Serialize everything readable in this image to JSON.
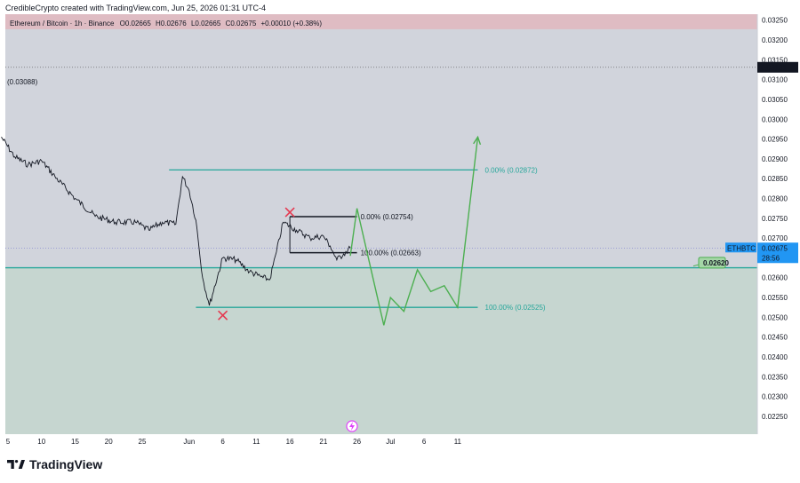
{
  "caption": "CredibleCrypto created with TradingView.com, Jun 25, 2026 01:31 UTC-4",
  "header": {
    "symbol": "Ethereum / Bitcoin · 1h · Binance",
    "o_label": "O",
    "o_value": "0.02665",
    "h_label": "H",
    "h_value": "0.02676",
    "l_label": "L",
    "l_value": "0.02665",
    "c_label": "C",
    "c_value": "0.02675",
    "change": "+0.00010 (+0.38%)"
  },
  "left_price_label": "(0.03088)",
  "brand": {
    "name": "TradingView"
  },
  "colors": {
    "plot_bg": "#d1d4dc",
    "green_zone": "#c6d6d0",
    "red_band": "#dfbcc3",
    "teal": "#26a69a",
    "projection": "#4caf50",
    "cross": "#e53950",
    "blue_label": "#2962ff",
    "price_tag": "#2196f3"
  },
  "chart_data": {
    "type": "line",
    "title": "Ethereum / Bitcoin · 1h · Binance",
    "x_ticks": [
      "5",
      "10",
      "15",
      "20",
      "25",
      "Jun",
      "6",
      "11",
      "16",
      "21",
      "26",
      "Jul",
      "6",
      "11"
    ],
    "y_ticks": [
      "0.03250",
      "0.03200",
      "0.03150",
      "0.03100",
      "0.03050",
      "0.03000",
      "0.02950",
      "0.02900",
      "0.02850",
      "0.02800",
      "0.02750",
      "0.02700",
      "0.02650",
      "0.02600",
      "0.02550",
      "0.02500",
      "0.02450",
      "0.02400",
      "0.02350",
      "0.02300",
      "0.02250"
    ],
    "ylim": [
      0.02205,
      0.03265
    ],
    "price_series": {
      "name": "ETHBTC",
      "points": [
        [
          "May 4",
          0.02955
        ],
        [
          "May 6",
          0.02905
        ],
        [
          "May 8",
          0.02885
        ],
        [
          "May 10",
          0.02895
        ],
        [
          "May 12",
          0.02855
        ],
        [
          "May 15",
          0.028
        ],
        [
          "May 18",
          0.02755
        ],
        [
          "May 21",
          0.0274
        ],
        [
          "May 24",
          0.0274
        ],
        [
          "May 26",
          0.0272
        ],
        [
          "May 28",
          0.0274
        ],
        [
          "May 30",
          0.02735
        ],
        [
          "May 31",
          0.02855
        ],
        [
          "Jun 1",
          0.0282
        ],
        [
          "Jun 2",
          0.02745
        ],
        [
          "Jun 3",
          0.026
        ],
        [
          "Jun 4",
          0.0253
        ],
        [
          "Jun 6",
          0.0265
        ],
        [
          "Jun 8",
          0.02645
        ],
        [
          "Jun 10",
          0.02615
        ],
        [
          "Jun 12",
          0.026
        ],
        [
          "Jun 13",
          0.02595
        ],
        [
          "Jun 14",
          0.02665
        ],
        [
          "Jun 15",
          0.0274
        ],
        [
          "Jun 17",
          0.0272
        ],
        [
          "Jun 19",
          0.027
        ],
        [
          "Jun 21",
          0.02705
        ],
        [
          "Jun 22",
          0.0268
        ],
        [
          "Jun 23",
          0.02645
        ],
        [
          "Jun 24",
          0.0266
        ],
        [
          "Jun 25",
          0.02675
        ]
      ]
    },
    "projection": {
      "name": "",
      "points": [
        [
          "Jun 25",
          0.02655
        ],
        [
          "Jun 26",
          0.02775
        ],
        [
          "Jun 30",
          0.0248
        ],
        [
          "Jul 1",
          0.0255
        ],
        [
          "Jul 3",
          0.02515
        ],
        [
          "Jul 5",
          0.0262
        ],
        [
          "Jul 7",
          0.02565
        ],
        [
          "Jul 9",
          0.0258
        ],
        [
          "Jul 11",
          0.02525
        ],
        [
          "Jul 14",
          0.02955
        ]
      ]
    },
    "levels": [
      {
        "label": "0.00% (0.02872)",
        "value": 0.02872,
        "from": "May 29",
        "to": "Jul 14",
        "color": "#26a69a"
      },
      {
        "label": "100.00% (0.02525)",
        "value": 0.02525,
        "from": "Jun 2",
        "to": "Jul 14",
        "color": "#26a69a"
      },
      {
        "label": "0.00% (0.02754)",
        "value": 0.02754,
        "from": "Jun 16",
        "to": "Jun 26",
        "color": "#131722"
      },
      {
        "label": "100.00% (0.02663)",
        "value": 0.02663,
        "from": "Jun 16",
        "to": "Jun 26",
        "color": "#131722"
      }
    ],
    "support_line": 0.02625,
    "current_price": {
      "symbol": "ETHBTC",
      "value": "0.02675",
      "countdown": "28:56"
    },
    "marked_price": "0.03131",
    "green_label": "0.02620",
    "markers": [
      {
        "type": "cross",
        "date": "Jun 16",
        "price": 0.02765
      },
      {
        "type": "cross",
        "date": "Jun 6",
        "price": 0.02505
      }
    ],
    "grid": false
  }
}
